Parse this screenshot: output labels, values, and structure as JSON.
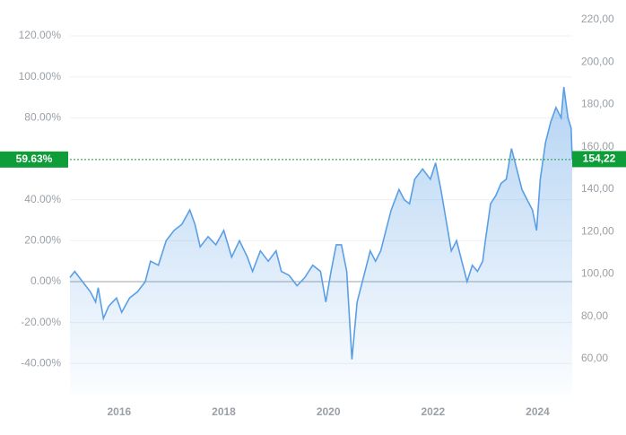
{
  "chart_data": {
    "type": "line",
    "x": [
      2015.06,
      2015.15,
      2015.3,
      2015.45,
      2015.55,
      2015.6,
      2015.7,
      2015.8,
      2015.95,
      2016.05,
      2016.2,
      2016.35,
      2016.5,
      2016.6,
      2016.75,
      2016.9,
      2017.05,
      2017.2,
      2017.35,
      2017.45,
      2017.55,
      2017.7,
      2017.85,
      2018.0,
      2018.15,
      2018.3,
      2018.45,
      2018.55,
      2018.7,
      2018.85,
      2019.0,
      2019.1,
      2019.25,
      2019.4,
      2019.55,
      2019.7,
      2019.85,
      2019.95,
      2020.05,
      2020.15,
      2020.25,
      2020.35,
      2020.45,
      2020.55,
      2020.7,
      2020.8,
      2020.9,
      2021.0,
      2021.1,
      2021.2,
      2021.35,
      2021.45,
      2021.55,
      2021.65,
      2021.8,
      2021.95,
      2022.05,
      2022.15,
      2022.25,
      2022.35,
      2022.45,
      2022.55,
      2022.65,
      2022.75,
      2022.85,
      2022.95,
      2023.0,
      2023.1,
      2023.2,
      2023.3,
      2023.4,
      2023.5,
      2023.6,
      2023.7,
      2023.8,
      2023.9,
      2023.98,
      2024.05,
      2024.15,
      2024.25,
      2024.35,
      2024.45,
      2024.5,
      2024.58,
      2024.64,
      2024.66
    ],
    "series": [
      {
        "color": "#5a9fe6",
        "values": [
          2,
          5,
          0,
          -5,
          -10,
          -3,
          -18,
          -12,
          -8,
          -15,
          -8,
          -5,
          0,
          10,
          8,
          20,
          25,
          28,
          35,
          28,
          17,
          22,
          18,
          25,
          12,
          20,
          12,
          5,
          15,
          10,
          15,
          5,
          3,
          -2,
          2,
          8,
          5,
          -10,
          5,
          18,
          18,
          5,
          -38,
          -10,
          5,
          15,
          10,
          15,
          25,
          35,
          45,
          40,
          38,
          50,
          55,
          50,
          58,
          45,
          30,
          15,
          20,
          10,
          0,
          8,
          5,
          10,
          20,
          38,
          42,
          48,
          50,
          65,
          55,
          45,
          40,
          35,
          25,
          50,
          68,
          78,
          85,
          80,
          95,
          80,
          75,
          59.63
        ]
      }
    ],
    "xlim": [
      2015.06,
      2024.66
    ],
    "xticks": [
      2016,
      2018,
      2020,
      2022,
      2024
    ],
    "ylim": [
      -55.2,
      127.9
    ],
    "yticks": [
      {
        "value": -40,
        "label": "-40.00%"
      },
      {
        "value": -20,
        "label": "-20.00%"
      },
      {
        "value": 0,
        "label": "0.00%"
      },
      {
        "value": 20,
        "label": "20.00%"
      },
      {
        "value": 40,
        "label": "40.00%"
      },
      {
        "value": 80,
        "label": "80.00%"
      },
      {
        "value": 100,
        "label": "100.00%"
      },
      {
        "value": 120,
        "label": "120.00%"
      }
    ],
    "y2lim": [
      43.1,
      220
    ],
    "y2ticks": [
      {
        "value": 60,
        "label": "60,00"
      },
      {
        "value": 80,
        "label": "80,00"
      },
      {
        "value": 100,
        "label": "100,00"
      },
      {
        "value": 120,
        "label": "120,00"
      },
      {
        "value": 140,
        "label": "140,00"
      },
      {
        "value": 160,
        "label": "160,00"
      },
      {
        "value": 180,
        "label": "180,00"
      },
      {
        "value": 200,
        "label": "200,00"
      },
      {
        "value": 220,
        "label": "220,00"
      }
    ],
    "grid": true,
    "current": {
      "value": 59.63,
      "label": "59.63%"
    },
    "current_y2": {
      "value": 154.22,
      "label": "154,22"
    }
  }
}
